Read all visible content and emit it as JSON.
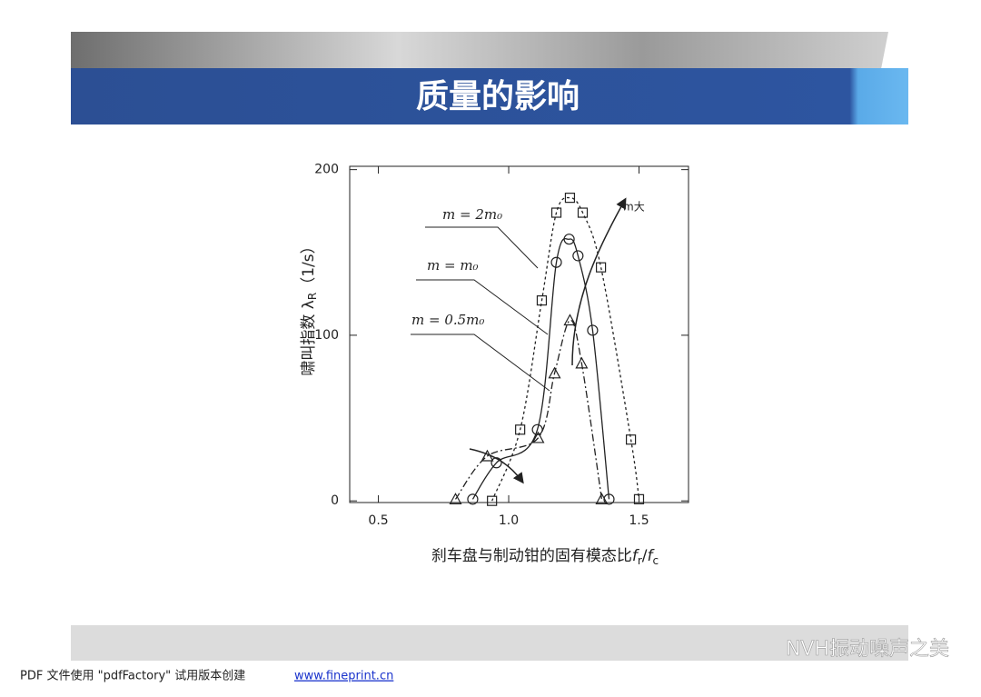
{
  "header": {
    "title": "质量的影响"
  },
  "chart_data": {
    "type": "scatter",
    "ylabel_parts": [
      "啸叫指数 λ",
      "R",
      "（1/s）"
    ],
    "xlabel_parts": [
      "刹车盘与制动钳的固有模态比",
      "f",
      "r",
      "/",
      "f",
      "c"
    ],
    "annotation": "m大",
    "xlim": [
      0.39,
      1.69
    ],
    "xticks": [
      0.5,
      {
        "value": 1,
        "label": "1.0"
      },
      1.5
    ],
    "ylim": [
      -1,
      202
    ],
    "yticks": [
      0,
      100,
      200
    ],
    "color": "#222222",
    "series": [
      {
        "name": "m = 2m₀",
        "marker": "square",
        "dash": "dotted",
        "x": [
          0.936,
          1.044,
          1.127,
          1.183,
          1.235,
          1.284,
          1.354,
          1.469,
          1.5
        ],
        "values": [
          0,
          43,
          121,
          174,
          183,
          174,
          141,
          37,
          1
        ]
      },
      {
        "name": "m = m₀",
        "marker": "circle",
        "dash": "solid",
        "x": [
          0.862,
          0.953,
          1.11,
          1.183,
          1.232,
          1.266,
          1.322,
          1.385
        ],
        "values": [
          1,
          23,
          43,
          144,
          158,
          148,
          103,
          1
        ]
      },
      {
        "name": "m = 0.5m₀",
        "marker": "triangle",
        "dash": "dashdot",
        "x": [
          0.796,
          0.918,
          1.113,
          1.176,
          1.235,
          1.28,
          1.357
        ],
        "values": [
          1,
          27,
          38,
          77,
          109,
          83,
          1
        ]
      }
    ]
  },
  "footer": {
    "watermark": "NVH振动噪声之美",
    "note": "PDF 文件使用 \"pdfFactory\" 试用版本创建",
    "link": "www.fineprint.cn"
  }
}
